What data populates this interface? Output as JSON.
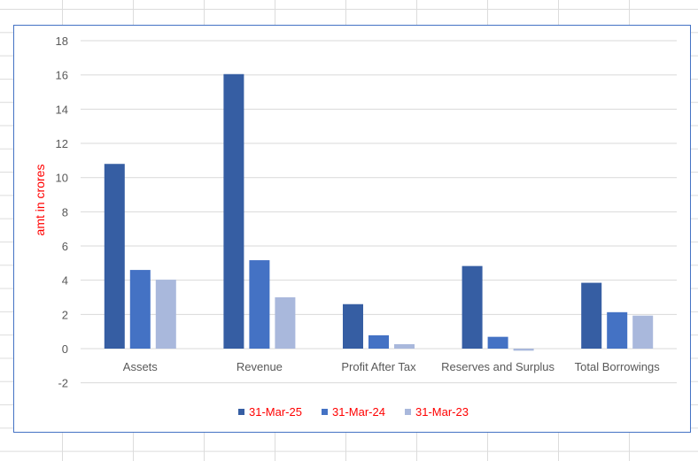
{
  "chart_data": {
    "type": "bar",
    "title": "",
    "xlabel": "",
    "ylabel": "amt in crores",
    "ylim": [
      -2,
      18
    ],
    "yticks": [
      -2,
      0,
      2,
      4,
      6,
      8,
      10,
      12,
      14,
      16,
      18
    ],
    "grid": true,
    "legend_position": "bottom",
    "categories": [
      "Assets",
      "Revenue",
      "Profit After Tax",
      "Reserves and Surplus",
      "Total Borrowings"
    ],
    "series": [
      {
        "name": "31-Mar-25",
        "color": "#365ea3",
        "values": [
          10.8,
          16.05,
          2.6,
          4.83,
          3.85
        ]
      },
      {
        "name": "31-Mar-24",
        "color": "#4472c4",
        "values": [
          4.6,
          5.17,
          0.78,
          0.69,
          2.13
        ]
      },
      {
        "name": "31-Mar-23",
        "color": "#a9b8dc",
        "values": [
          4.03,
          3.0,
          0.26,
          -0.12,
          1.93
        ]
      }
    ],
    "colors": {
      "axis_title": "#ff0000",
      "legend_text": "#ff0000",
      "tick_text": "#595959",
      "gridline": "#d9d9d9",
      "border": "#4472c4"
    }
  }
}
